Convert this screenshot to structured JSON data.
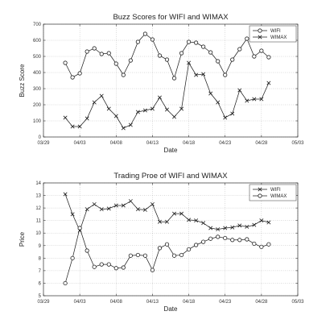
{
  "chart_data": [
    {
      "type": "line",
      "title": "Buzz Scores for WIFI and WIMAX",
      "xlabel": "Date",
      "ylabel": "Buzz Score",
      "x_ticks": [
        "03/29",
        "04/03",
        "04/08",
        "04/13",
        "04/18",
        "04/23",
        "04/28",
        "05/03"
      ],
      "xlim": [
        "03/29",
        "05/03"
      ],
      "ylim": [
        0,
        700
      ],
      "y_ticks": [
        0,
        100,
        200,
        300,
        400,
        500,
        600,
        700
      ],
      "grid": true,
      "legend": "top-right",
      "x": [
        "04/01",
        "04/02",
        "04/03",
        "04/04",
        "04/05",
        "04/06",
        "04/07",
        "04/08",
        "04/09",
        "04/10",
        "04/11",
        "04/12",
        "04/13",
        "04/14",
        "04/15",
        "04/16",
        "04/17",
        "04/18",
        "04/19",
        "04/20",
        "04/21",
        "04/22",
        "04/23",
        "04/24",
        "04/25",
        "04/26",
        "04/27",
        "04/28",
        "04/29"
      ],
      "series": [
        {
          "name": "WIFI",
          "marker": "circle",
          "values": [
            460,
            370,
            395,
            530,
            550,
            515,
            520,
            455,
            385,
            475,
            590,
            640,
            605,
            505,
            480,
            365,
            520,
            590,
            585,
            560,
            525,
            470,
            385,
            480,
            545,
            610,
            500,
            535,
            495
          ]
        },
        {
          "name": "WIMAX",
          "marker": "x",
          "values": [
            120,
            65,
            65,
            115,
            215,
            255,
            175,
            130,
            55,
            75,
            155,
            165,
            175,
            245,
            170,
            125,
            175,
            460,
            385,
            390,
            270,
            215,
            120,
            145,
            290,
            225,
            235,
            235,
            335
          ]
        }
      ]
    },
    {
      "type": "line",
      "title": "Trading Proe of WIFI and WIMAX",
      "xlabel": "Date",
      "ylabel": "Price",
      "x_ticks": [
        "03/29",
        "04/03",
        "04/08",
        "04/13",
        "04/18",
        "04/23",
        "04/28",
        "05/03"
      ],
      "xlim": [
        "03/29",
        "05/03"
      ],
      "ylim": [
        5,
        14
      ],
      "y_ticks": [
        5,
        6,
        7,
        8,
        9,
        10,
        11,
        12,
        13,
        14
      ],
      "grid": true,
      "legend": "top-right",
      "x": [
        "04/01",
        "04/02",
        "04/03",
        "04/04",
        "04/05",
        "04/06",
        "04/07",
        "04/08",
        "04/09",
        "04/10",
        "04/11",
        "04/12",
        "04/13",
        "04/14",
        "04/15",
        "04/16",
        "04/17",
        "04/18",
        "04/19",
        "04/20",
        "04/21",
        "04/22",
        "04/23",
        "04/24",
        "04/25",
        "04/26",
        "04/27",
        "04/28",
        "04/29"
      ],
      "series": [
        {
          "name": "WIFI",
          "marker": "x",
          "values": [
            13.1,
            11.5,
            10.2,
            11.9,
            12.3,
            11.9,
            11.95,
            12.2,
            12.2,
            12.55,
            11.9,
            11.85,
            12.3,
            10.9,
            10.9,
            11.55,
            11.55,
            11.05,
            11.0,
            10.8,
            10.4,
            10.3,
            10.4,
            10.45,
            10.6,
            10.5,
            10.65,
            11.0,
            10.85
          ]
        },
        {
          "name": "WIMAX",
          "marker": "circle",
          "values": [
            6.0,
            8.0,
            10.4,
            8.6,
            7.3,
            7.5,
            7.5,
            7.2,
            7.25,
            8.2,
            8.25,
            8.2,
            7.05,
            8.8,
            9.1,
            8.2,
            8.25,
            8.7,
            9.05,
            9.3,
            9.55,
            9.7,
            9.6,
            9.45,
            9.45,
            9.5,
            9.15,
            8.9,
            9.1
          ]
        }
      ]
    }
  ]
}
